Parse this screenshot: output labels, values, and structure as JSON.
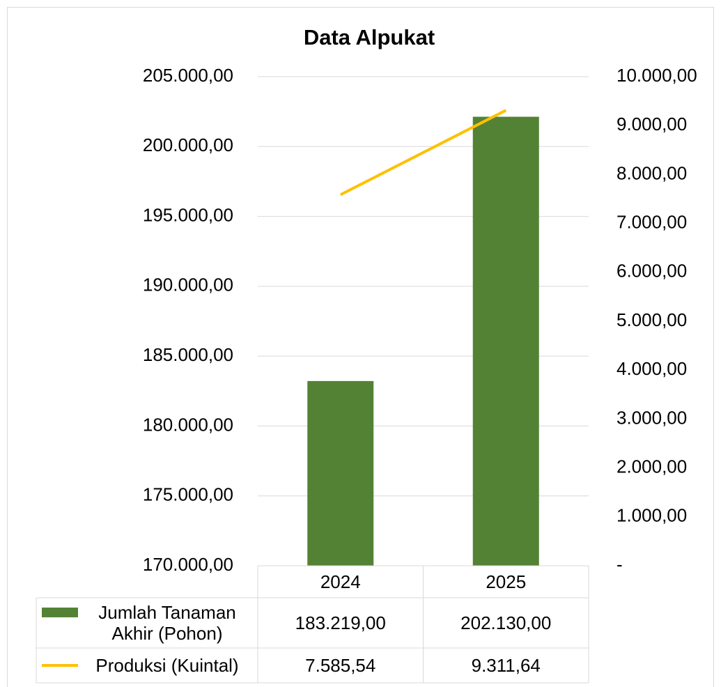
{
  "chart_data": {
    "type": "bar",
    "title": "Data Alpukat",
    "categories": [
      "2024",
      "2025"
    ],
    "series": [
      {
        "name": "Jumlah Tanaman Akhir (Pohon)",
        "type": "bar",
        "color": "#548235",
        "values": [
          183219,
          202130
        ],
        "value_labels": [
          "183.219,00",
          "202.130,00"
        ]
      },
      {
        "name": "Produksi (Kuintal)",
        "type": "line",
        "axis": "y2",
        "color": "#ffc000",
        "values": [
          7585.54,
          9311.64
        ],
        "value_labels": [
          "7.585,54",
          "9.311,64"
        ]
      }
    ],
    "ylim": [
      170000,
      205000
    ],
    "yticks": [
      {
        "value": 170000,
        "label": "170.000,00"
      },
      {
        "value": 175000,
        "label": "175.000,00"
      },
      {
        "value": 180000,
        "label": "180.000,00"
      },
      {
        "value": 185000,
        "label": "185.000,00"
      },
      {
        "value": 190000,
        "label": "190.000,00"
      },
      {
        "value": 195000,
        "label": "195.000,00"
      },
      {
        "value": 200000,
        "label": "200.000,00"
      },
      {
        "value": 205000,
        "label": "205.000,00"
      }
    ],
    "y2lim": [
      0,
      10000
    ],
    "y2ticks": [
      {
        "value": 0,
        "label": "-"
      },
      {
        "value": 1000,
        "label": "1.000,00"
      },
      {
        "value": 2000,
        "label": "2.000,00"
      },
      {
        "value": 3000,
        "label": "3.000,00"
      },
      {
        "value": 4000,
        "label": "4.000,00"
      },
      {
        "value": 5000,
        "label": "5.000,00"
      },
      {
        "value": 6000,
        "label": "6.000,00"
      },
      {
        "value": 7000,
        "label": "7.000,00"
      },
      {
        "value": 8000,
        "label": "8.000,00"
      },
      {
        "value": 9000,
        "label": "9.000,00"
      },
      {
        "value": 10000,
        "label": "10.000,00"
      }
    ],
    "grid": true,
    "data_table": true
  }
}
